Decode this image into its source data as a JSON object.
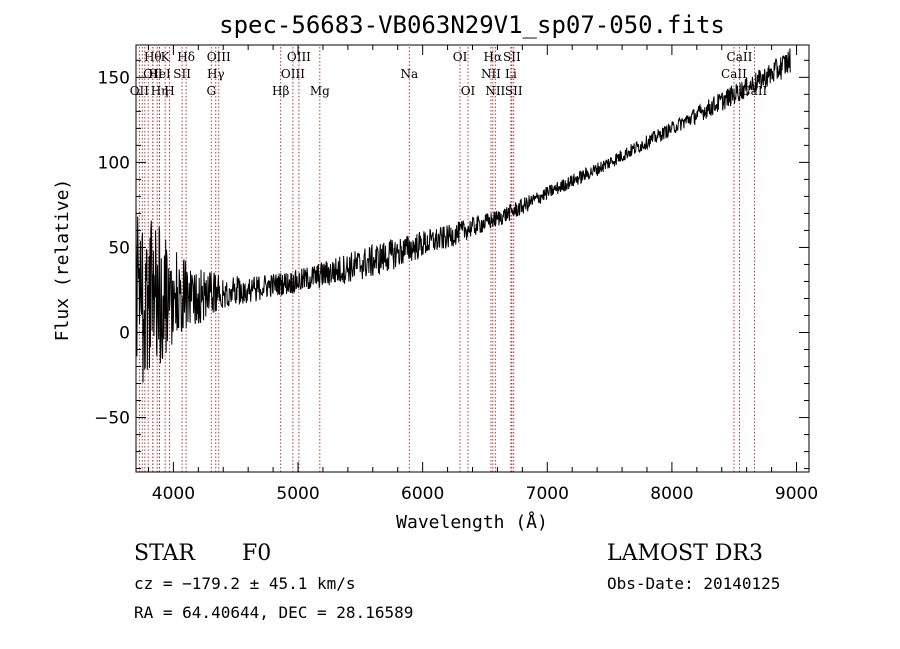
{
  "chart_data": {
    "type": "line",
    "title": "spec-56683-VB063N29V1_sp07-050.fits",
    "xlabel": "Wavelength (Å)",
    "ylabel": "Flux (relative)",
    "xlim": [
      3700,
      9100
    ],
    "ylim": [
      -82,
      169
    ],
    "xticks": [
      4000,
      5000,
      6000,
      7000,
      8000,
      9000
    ],
    "xtick_labels": [
      "4000",
      "5000",
      "6000",
      "7000",
      "8000",
      "9000"
    ],
    "yticks": [
      -50,
      0,
      50,
      100,
      150
    ],
    "ytick_labels": [
      "−50",
      "0",
      "50",
      "100",
      "150"
    ],
    "x_minor_step": 200,
    "y_minor_step": 10,
    "series": [
      {
        "name": "flux",
        "color": "#000000",
        "x": [
          3700,
          3800,
          3900,
          4000,
          4100,
          4200,
          4300,
          4400,
          4600,
          4800,
          5000,
          5200,
          5400,
          5600,
          5800,
          6000,
          6200,
          6400,
          6600,
          6800,
          7000,
          7200,
          7400,
          7600,
          7800,
          8000,
          8200,
          8400,
          8600,
          8800,
          8950
        ],
        "y": [
          20,
          20,
          21,
          22,
          23,
          22,
          23,
          24,
          25,
          28,
          30,
          34,
          38,
          42,
          47,
          52,
          56,
          62,
          67,
          74,
          82,
          89,
          96,
          104,
          112,
          120,
          128,
          136,
          144,
          152,
          160
        ],
        "noise": [
          60,
          50,
          40,
          30,
          22,
          18,
          14,
          10,
          8,
          7,
          7,
          8,
          9,
          10,
          9,
          8,
          7,
          6,
          5,
          5,
          4,
          4,
          4,
          4,
          4,
          4,
          5,
          6,
          6,
          7,
          8
        ]
      }
    ],
    "lines": [
      {
        "wave": 3727,
        "label": "OII",
        "row": 2
      },
      {
        "wave": 3750,
        "label": "",
        "row": 2
      },
      {
        "wave": 3771,
        "label": "",
        "row": 2
      },
      {
        "wave": 3798,
        "label": "",
        "row": 2
      },
      {
        "wave": 3835,
        "label": "Hθ",
        "row": 0
      },
      {
        "wave": 3835,
        "label": "OII",
        "row": 1
      },
      {
        "wave": 3870,
        "label": "",
        "row": 2
      },
      {
        "wave": 3889,
        "label": "HeI",
        "row": 1
      },
      {
        "wave": 3889,
        "label": "Hη",
        "row": 2
      },
      {
        "wave": 3934,
        "label": "K",
        "row": 0
      },
      {
        "wave": 3969,
        "label": "H",
        "row": 2
      },
      {
        "wave": 4070,
        "label": "SII",
        "row": 1
      },
      {
        "wave": 4102,
        "label": "Hδ",
        "row": 0
      },
      {
        "wave": 4304,
        "label": "G",
        "row": 2
      },
      {
        "wave": 4340,
        "label": "Hγ",
        "row": 1
      },
      {
        "wave": 4364,
        "label": "OIII",
        "row": 0
      },
      {
        "wave": 4861,
        "label": "Hβ",
        "row": 2
      },
      {
        "wave": 4959,
        "label": "OIII",
        "row": 1
      },
      {
        "wave": 5007,
        "label": "OIII",
        "row": 0
      },
      {
        "wave": 5175,
        "label": "Mg",
        "row": 2
      },
      {
        "wave": 5893,
        "label": "Na",
        "row": 1
      },
      {
        "wave": 6300,
        "label": "OI",
        "row": 0
      },
      {
        "wave": 6364,
        "label": "OI",
        "row": 2
      },
      {
        "wave": 6548,
        "label": "NII",
        "row": 1
      },
      {
        "wave": 6563,
        "label": "Hα",
        "row": 0
      },
      {
        "wave": 6583,
        "label": "NII",
        "row": 2
      },
      {
        "wave": 6708,
        "label": "Li",
        "row": 1
      },
      {
        "wave": 6716,
        "label": "SII",
        "row": 0
      },
      {
        "wave": 6731,
        "label": "SII",
        "row": 2
      },
      {
        "wave": 8498,
        "label": "CaII",
        "row": 1
      },
      {
        "wave": 8542,
        "label": "CaII",
        "row": 0
      },
      {
        "wave": 8662,
        "label": "CaII",
        "row": 2
      }
    ]
  },
  "info": {
    "class": "STAR",
    "subclass": "F0",
    "survey": "LAMOST DR3",
    "cz": "cz = −179.2 ± 45.1 km/s",
    "obs_date": "Obs-Date: 20140125",
    "radec": "RA =  64.40644, DEC =  28.16589"
  }
}
